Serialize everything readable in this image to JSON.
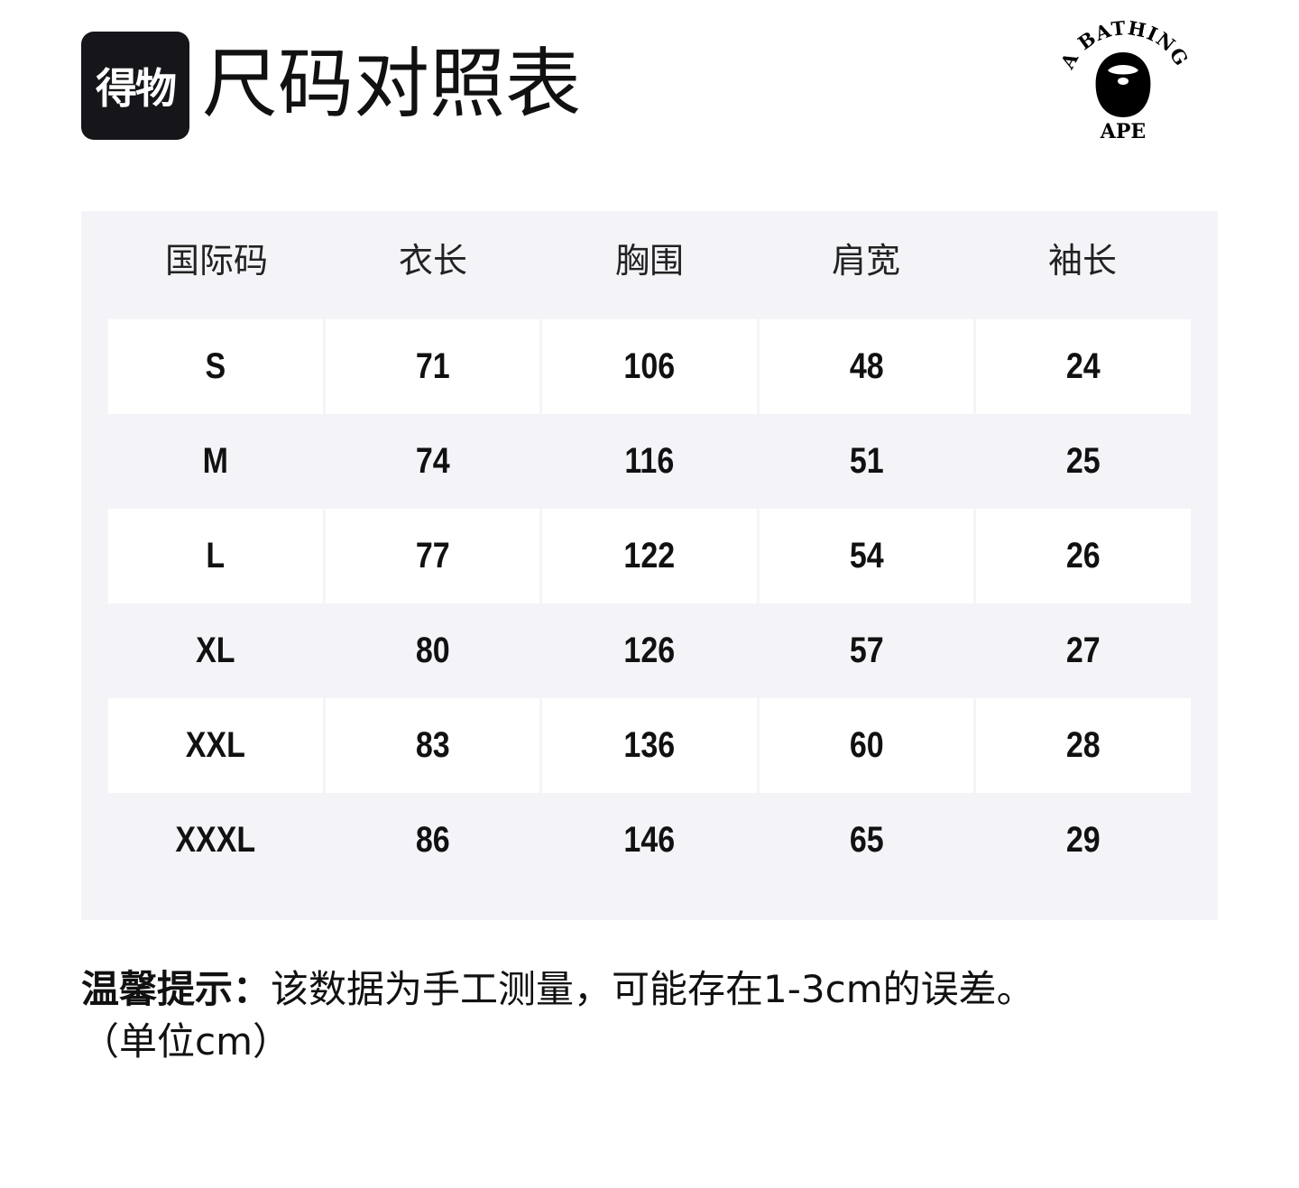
{
  "header": {
    "brand_badge": "得物",
    "title": "尺码对照表",
    "logo_text": {
      "top": "A BATHING",
      "bottom": "APE"
    }
  },
  "table": {
    "columns": [
      "国际码",
      "衣长",
      "胸围",
      "肩宽",
      "袖长"
    ],
    "rows": [
      [
        "S",
        "71",
        "106",
        "48",
        "24"
      ],
      [
        "M",
        "74",
        "116",
        "51",
        "25"
      ],
      [
        "L",
        "77",
        "122",
        "54",
        "26"
      ],
      [
        "XL",
        "80",
        "126",
        "57",
        "27"
      ],
      [
        "XXL",
        "83",
        "136",
        "60",
        "28"
      ],
      [
        "XXXL",
        "86",
        "146",
        "65",
        "29"
      ]
    ]
  },
  "note": {
    "label": "温馨提示：",
    "text": "该数据为手工测量，可能存在1-3cm的误差。",
    "unit": "（单位cm）"
  },
  "colors": {
    "panel": "#f4f4f8",
    "cell": "#ffffff",
    "badge": "#15151a"
  }
}
